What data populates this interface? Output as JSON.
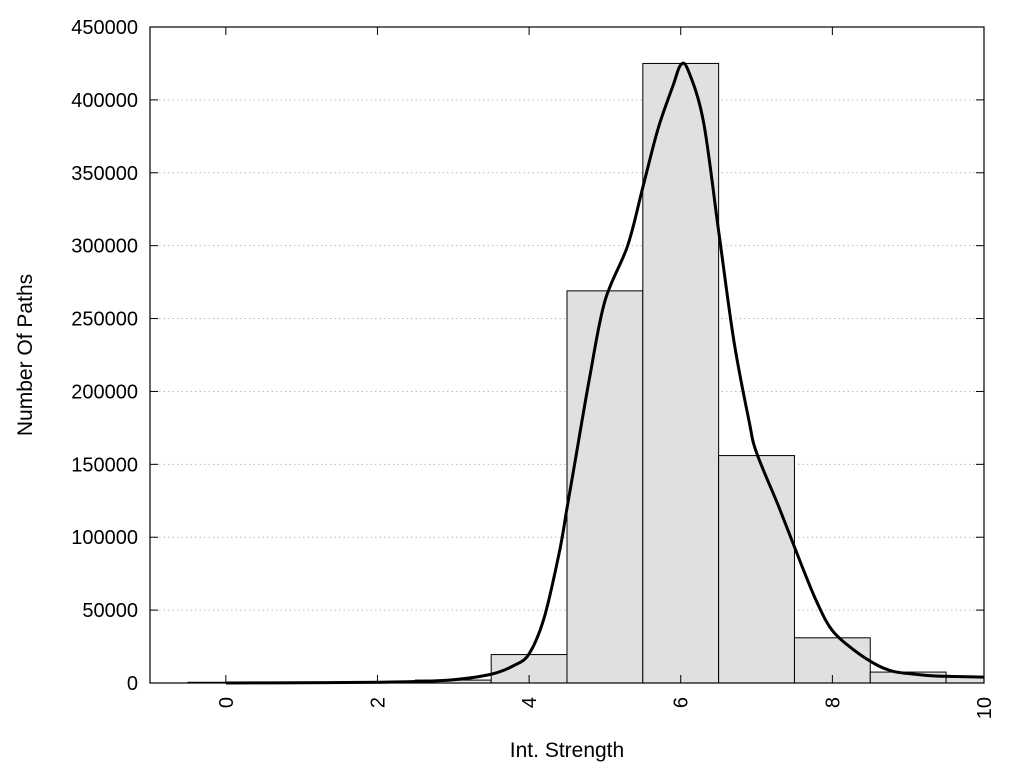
{
  "chart_data": {
    "type": "bar",
    "title": "",
    "xlabel": "Int. Strength",
    "ylabel": "Number Of Paths",
    "xlim": [
      -1,
      10
    ],
    "ylim": [
      0,
      450000
    ],
    "xticks": [
      0,
      2,
      4,
      6,
      8,
      10
    ],
    "yticks": [
      0,
      50000,
      100000,
      150000,
      200000,
      250000,
      300000,
      350000,
      400000,
      450000
    ],
    "grid": "horizontal-dotted",
    "bins": [
      {
        "center": 0,
        "value": 500
      },
      {
        "center": 1,
        "value": 500
      },
      {
        "center": 2,
        "value": 800
      },
      {
        "center": 3,
        "value": 2000
      },
      {
        "center": 4,
        "value": 19500
      },
      {
        "center": 5,
        "value": 269000
      },
      {
        "center": 6,
        "value": 425000
      },
      {
        "center": 7,
        "value": 156000
      },
      {
        "center": 8,
        "value": 31000
      },
      {
        "center": 9,
        "value": 7500
      },
      {
        "center": 10,
        "value": 4000
      }
    ],
    "curve": {
      "x": [
        0,
        1,
        2,
        2.5,
        3,
        3.5,
        3.8,
        4,
        4.2,
        4.4,
        4.5,
        4.6,
        4.8,
        5,
        5.3,
        5.5,
        5.7,
        5.9,
        6,
        6.1,
        6.3,
        6.5,
        6.7,
        6.9,
        7,
        7.3,
        7.6,
        7.8,
        8,
        8.3,
        8.6,
        8.8,
        9,
        9.3,
        9.6,
        10
      ],
      "y": [
        0,
        200,
        500,
        1000,
        2200,
        6000,
        12000,
        20000,
        45000,
        90000,
        120000,
        150000,
        210000,
        262000,
        300000,
        340000,
        380000,
        410000,
        424000,
        420000,
        385000,
        310000,
        235000,
        180000,
        158000,
        120000,
        80000,
        55000,
        36000,
        22000,
        12000,
        8000,
        6500,
        5000,
        4500,
        4000
      ]
    }
  }
}
